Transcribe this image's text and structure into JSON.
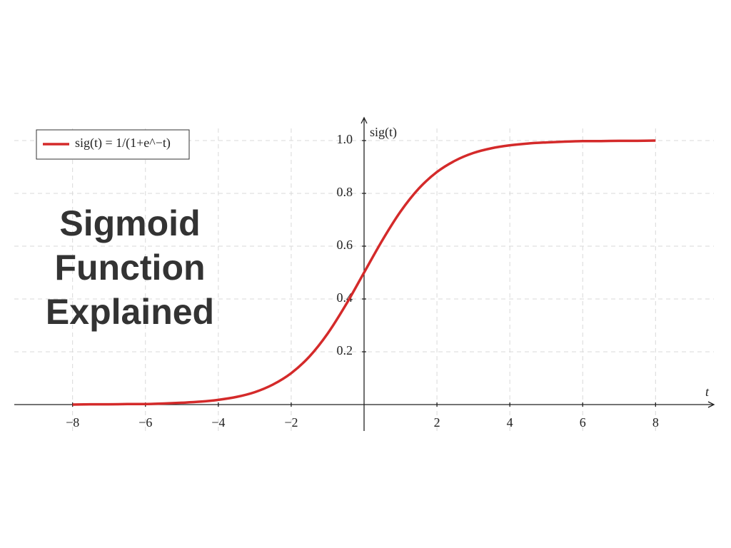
{
  "chart_data": {
    "type": "line",
    "title": "Sigmoid Function Explained",
    "x_label": "t",
    "y_label": "sig(t)",
    "x": [
      -8,
      -7.5,
      -7,
      -6.5,
      -6,
      -5.5,
      -5,
      -4.5,
      -4,
      -3.5,
      -3,
      -2.5,
      -2,
      -1.5,
      -1,
      -0.5,
      0,
      0.5,
      1,
      1.5,
      2,
      2.5,
      3,
      3.5,
      4,
      4.5,
      5,
      5.5,
      6,
      6.5,
      7,
      7.5,
      8
    ],
    "series": [
      {
        "name": "sig(t) = 1/(1+e^−t)",
        "color": "#d42a2a",
        "values": [
          0,
          0.001,
          0.001,
          0.002,
          0.002,
          0.004,
          0.007,
          0.011,
          0.018,
          0.029,
          0.047,
          0.076,
          0.119,
          0.182,
          0.269,
          0.378,
          0.5,
          0.622,
          0.731,
          0.818,
          0.881,
          0.924,
          0.953,
          0.971,
          0.982,
          0.989,
          0.993,
          0.996,
          0.998,
          0.998,
          0.999,
          0.999,
          1.0
        ]
      }
    ],
    "xlim": [
      -9.6,
      9.6
    ],
    "ylim": [
      -0.1,
      1.1
    ],
    "xticks": [
      {
        "value": -8,
        "label": "−8"
      },
      {
        "value": -6,
        "label": "−6"
      },
      {
        "value": -4,
        "label": "−4"
      },
      {
        "value": -2,
        "label": "−2"
      },
      2,
      4,
      6,
      8
    ],
    "yticks": [
      0.2,
      0.4,
      0.6,
      0.8,
      {
        "value": 1,
        "label": "1.0"
      }
    ],
    "grid": true,
    "legend": "upper-left"
  }
}
